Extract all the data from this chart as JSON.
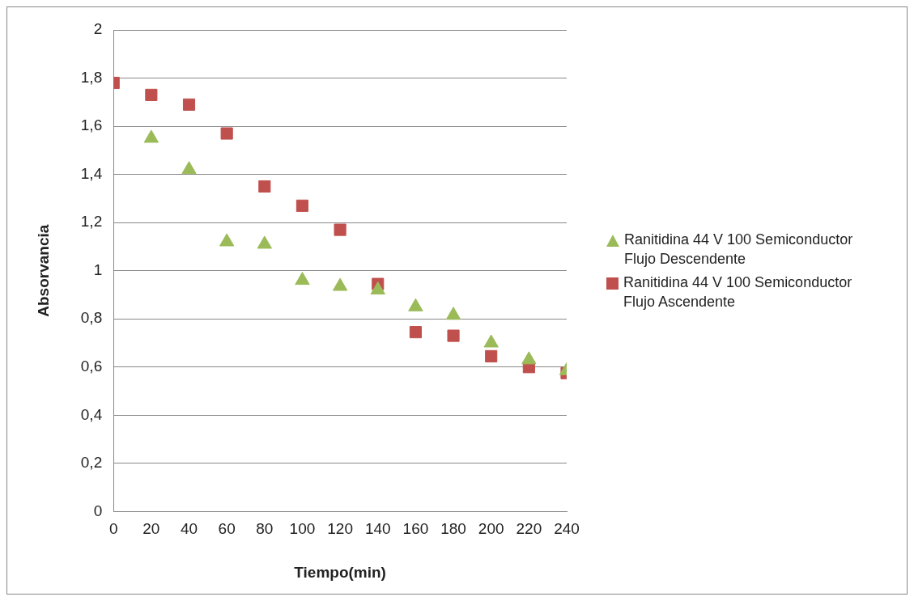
{
  "chart_data": {
    "type": "scatter",
    "xlabel": "Tiempo(min)",
    "ylabel": "Absorvancia",
    "x": [
      0,
      20,
      40,
      60,
      80,
      100,
      120,
      140,
      160,
      180,
      200,
      220,
      240
    ],
    "series": [
      {
        "name": "Ranitidina 44 V 100 Semiconductor Flujo Descendente",
        "color": "#9bbb59",
        "marker": "triangle",
        "values": [
          null,
          1.55,
          1.42,
          1.12,
          1.11,
          0.96,
          0.935,
          0.92,
          0.85,
          0.815,
          0.7,
          0.63,
          0.585
        ]
      },
      {
        "name": "Ranitidina 44 V 100 Semiconductor Flujo Ascendente",
        "color": "#c0504d",
        "marker": "square",
        "values": [
          1.78,
          1.73,
          1.69,
          1.57,
          1.35,
          1.27,
          1.17,
          0.945,
          0.745,
          0.73,
          0.645,
          0.6,
          0.575
        ]
      }
    ],
    "xlim": [
      0,
      240
    ],
    "xticks": [
      0,
      20,
      40,
      60,
      80,
      100,
      120,
      140,
      160,
      180,
      200,
      220,
      240
    ],
    "ylim": [
      0,
      2
    ],
    "yticks": [
      0,
      {
        "value": 0.2,
        "label": "0,2"
      },
      {
        "value": 0.4,
        "label": "0,4"
      },
      {
        "value": 0.6,
        "label": "0,6"
      },
      {
        "value": 0.8,
        "label": "0,8"
      },
      1,
      {
        "value": 1.2,
        "label": "1,2"
      },
      {
        "value": 1.4,
        "label": "1,4"
      },
      {
        "value": 1.6,
        "label": "1,6"
      },
      {
        "value": 1.8,
        "label": "1,8"
      },
      2
    ],
    "grid": "y",
    "legend": "right"
  }
}
